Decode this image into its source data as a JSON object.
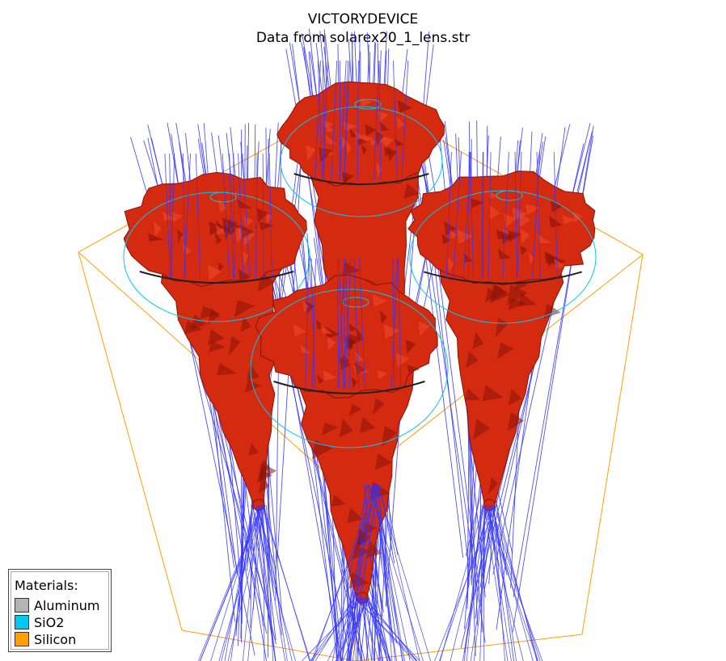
{
  "title": "VICTORYDEVICE",
  "subtitle": "Data from solarex20_1_lens.str",
  "legend": {
    "heading": "Materials:",
    "items": [
      {
        "label": "Aluminum",
        "color": "#b4b4b4"
      },
      {
        "label": "SiO2",
        "color": "#00c8f0"
      },
      {
        "label": "Silicon",
        "color": "#ffa000"
      }
    ]
  },
  "colors": {
    "structure": "#d42a10",
    "structure_dark": "#8a1208",
    "rays": "#3232ff",
    "bounding_box": "#ffa000",
    "lens_outline": "#00c8f0"
  },
  "cones": [
    {
      "name": "back"
    },
    {
      "name": "left"
    },
    {
      "name": "right"
    },
    {
      "name": "front"
    }
  ]
}
